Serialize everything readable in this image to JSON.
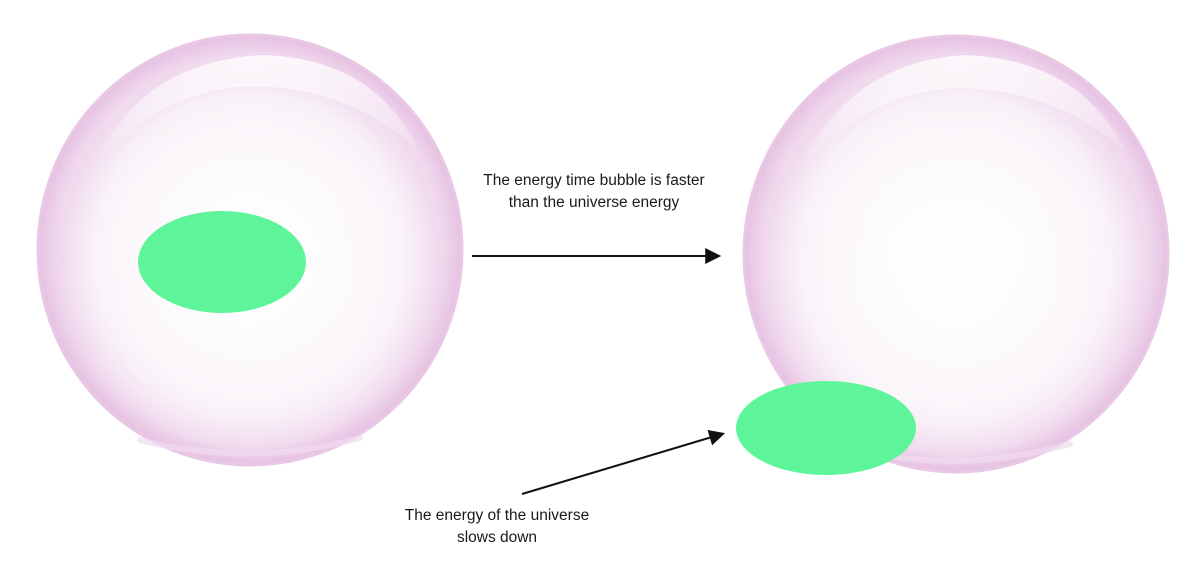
{
  "labels": {
    "top": "The energy time bubble is faster than the universe energy",
    "bottom": "The energy of the universe slows down"
  },
  "colors": {
    "energy_blob": "#5ef59a",
    "bubble_tint": "#e9c6e6",
    "arrow": "#111111"
  }
}
